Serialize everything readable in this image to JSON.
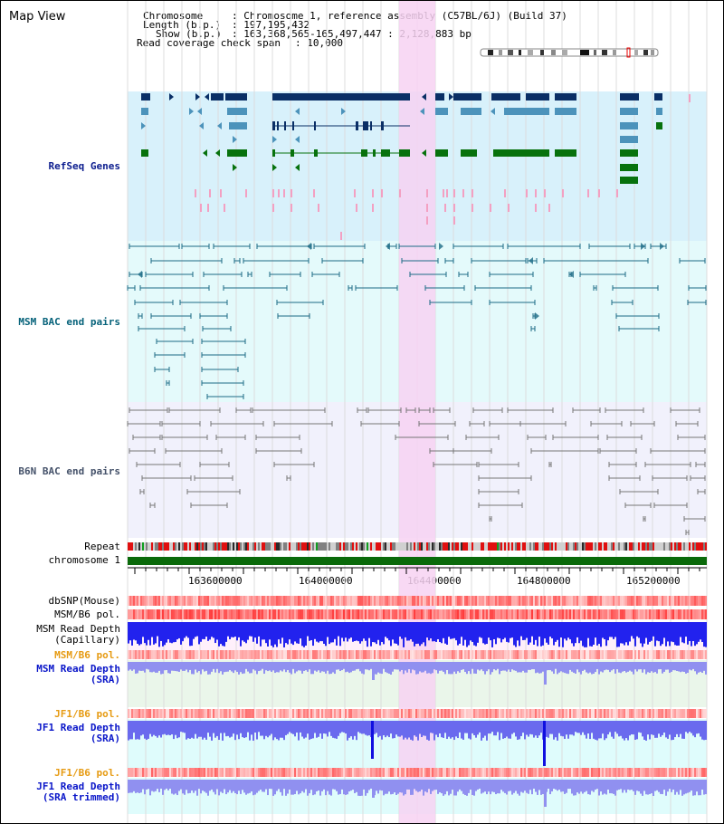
{
  "map": {
    "title": "Map View"
  },
  "header": {
    "chromosome_key": "Chromosome",
    "chromosome_val": ": Chromosome 1, reference assembly (C57BL/6J) (Build 37)",
    "length_key": "Length (b.p.)",
    "length_val": ": 197,195,432",
    "show_key": "Show (b.p.)",
    "show_val": ": 163,368,565-165,497,447 : 2,128,883 bp",
    "span_key": "Read coverage check span",
    "span_val": ": 10,000"
  },
  "tracks": {
    "refseq": "RefSeq Genes",
    "msm_bac": "MSM BAC end pairs",
    "b6n_bac": "B6N BAC end pairs",
    "repeat": "Repeat",
    "chromosome": "chromosome 1",
    "dbsnp": "dbSNP(Mouse)",
    "msm_b6_pol_1": "MSM/B6 pol.",
    "msm_depth_cap": "MSM Read Depth\n(Capillary)",
    "msm_b6_pol_2": "MSM/B6 pol.",
    "msm_depth_sra": "MSM Read Depth\n(SRA)",
    "jf1_b6_pol_1": "JF1/B6 pol.",
    "jf1_depth_sra": "JF1 Read Depth\n(SRA)",
    "jf1_b6_pol_2": "JF1/B6 pol.",
    "jf1_depth_trim": "JF1 Read Depth\n(SRA trimmed)"
  },
  "axis": {
    "ticks": [
      "163600000",
      "164000000",
      "164400000",
      "164800000",
      "165200000"
    ]
  },
  "colors": {
    "highlight": "#f7d2f2",
    "refseq_bg": "#d8f1fb",
    "msm_bg": "#e4fafb",
    "b6n_bg": "#f1f1fc",
    "gene_navy": "#0a2f66",
    "gene_steel": "#4c93bb",
    "gene_green": "#07720d",
    "pink_tick": "#f3a0c2",
    "bac_teal": "#1d6b86",
    "bac_gray": "#767676",
    "chrom_green": "#0a6a0a",
    "depth_blue_dark": "#1010f0",
    "depth_blue_mid": "#4040e8",
    "depth_blue_light": "#9090f0"
  }
}
